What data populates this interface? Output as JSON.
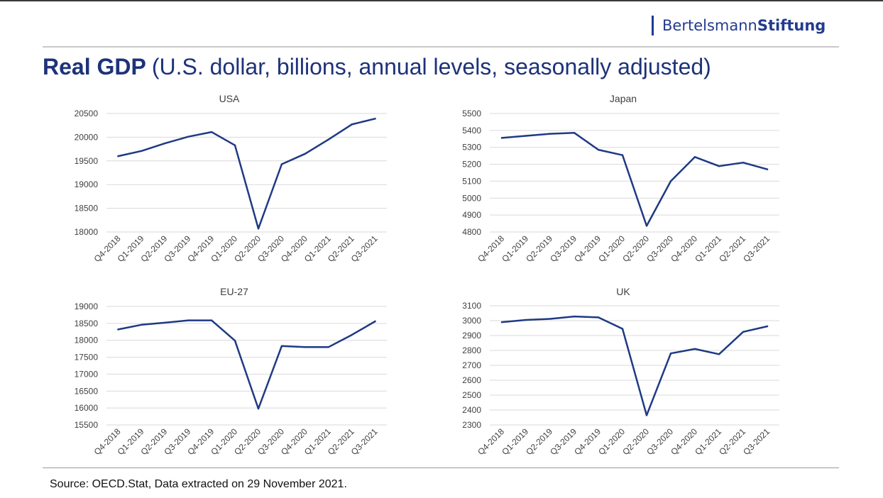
{
  "header": {
    "brand_regular": "Bertelsmann",
    "brand_bold": "Stiftung",
    "title_bold": "Real GDP",
    "title_rest": "(U.S. dollar, billions, annual levels, seasonally adjusted)"
  },
  "source": "Source: OECD.Stat, Data extracted on 29 November 2021.",
  "colors": {
    "line": "#1f3a84",
    "grid": "#d9d9d9",
    "text": "#404040",
    "title": "#1d3279"
  },
  "chart_data": [
    {
      "type": "line",
      "title": "USA",
      "categories": [
        "Q4-2018",
        "Q1-2019",
        "Q2-2019",
        "Q3-2019",
        "Q4-2019",
        "Q1-2020",
        "Q2-2020",
        "Q3-2020",
        "Q4-2020",
        "Q1-2021",
        "Q2-2021",
        "Q3-2021"
      ],
      "values": [
        19600,
        19710,
        19870,
        20010,
        20110,
        19830,
        18070,
        19430,
        19650,
        19950,
        20270,
        20390
      ],
      "yticks": [
        18000,
        18500,
        19000,
        19500,
        20000,
        20500
      ],
      "ylim": [
        18000,
        20500
      ],
      "grid": true
    },
    {
      "type": "line",
      "title": "Japan",
      "categories": [
        "Q4-2018",
        "Q1-2019",
        "Q2-2019",
        "Q3-2019",
        "Q4-2019",
        "Q1-2020",
        "Q2-2020",
        "Q3-2020",
        "Q4-2020",
        "Q1-2021",
        "Q2-2021",
        "Q3-2021"
      ],
      "values": [
        5356,
        5368,
        5380,
        5386,
        5286,
        5254,
        4836,
        5100,
        5243,
        5189,
        5210,
        5170
      ],
      "yticks": [
        4800,
        4900,
        5000,
        5100,
        5200,
        5300,
        5400,
        5500
      ],
      "ylim": [
        4800,
        5500
      ],
      "grid": true
    },
    {
      "type": "line",
      "title": "EU-27",
      "categories": [
        "Q4-2018",
        "Q1-2019",
        "Q2-2019",
        "Q3-2019",
        "Q4-2019",
        "Q1-2020",
        "Q2-2020",
        "Q3-2020",
        "Q4-2020",
        "Q1-2021",
        "Q2-2021",
        "Q3-2021"
      ],
      "values": [
        18320,
        18460,
        18520,
        18590,
        18590,
        17990,
        15980,
        17830,
        17800,
        17800,
        18160,
        18560
      ],
      "yticks": [
        15500,
        16000,
        16500,
        17000,
        17500,
        18000,
        18500,
        19000
      ],
      "ylim": [
        15500,
        19000
      ],
      "grid": true
    },
    {
      "type": "line",
      "title": "UK",
      "categories": [
        "Q4-2018",
        "Q1-2019",
        "Q2-2019",
        "Q3-2019",
        "Q4-2019",
        "Q1-2020",
        "Q2-2020",
        "Q3-2020",
        "Q4-2020",
        "Q1-2021",
        "Q2-2021",
        "Q3-2021"
      ],
      "values": [
        2990,
        3005,
        3012,
        3028,
        3022,
        2945,
        2365,
        2780,
        2810,
        2775,
        2925,
        2962
      ],
      "yticks": [
        2300,
        2400,
        2500,
        2600,
        2700,
        2800,
        2900,
        3000,
        3100
      ],
      "ylim": [
        2300,
        3100
      ],
      "grid": true
    }
  ]
}
